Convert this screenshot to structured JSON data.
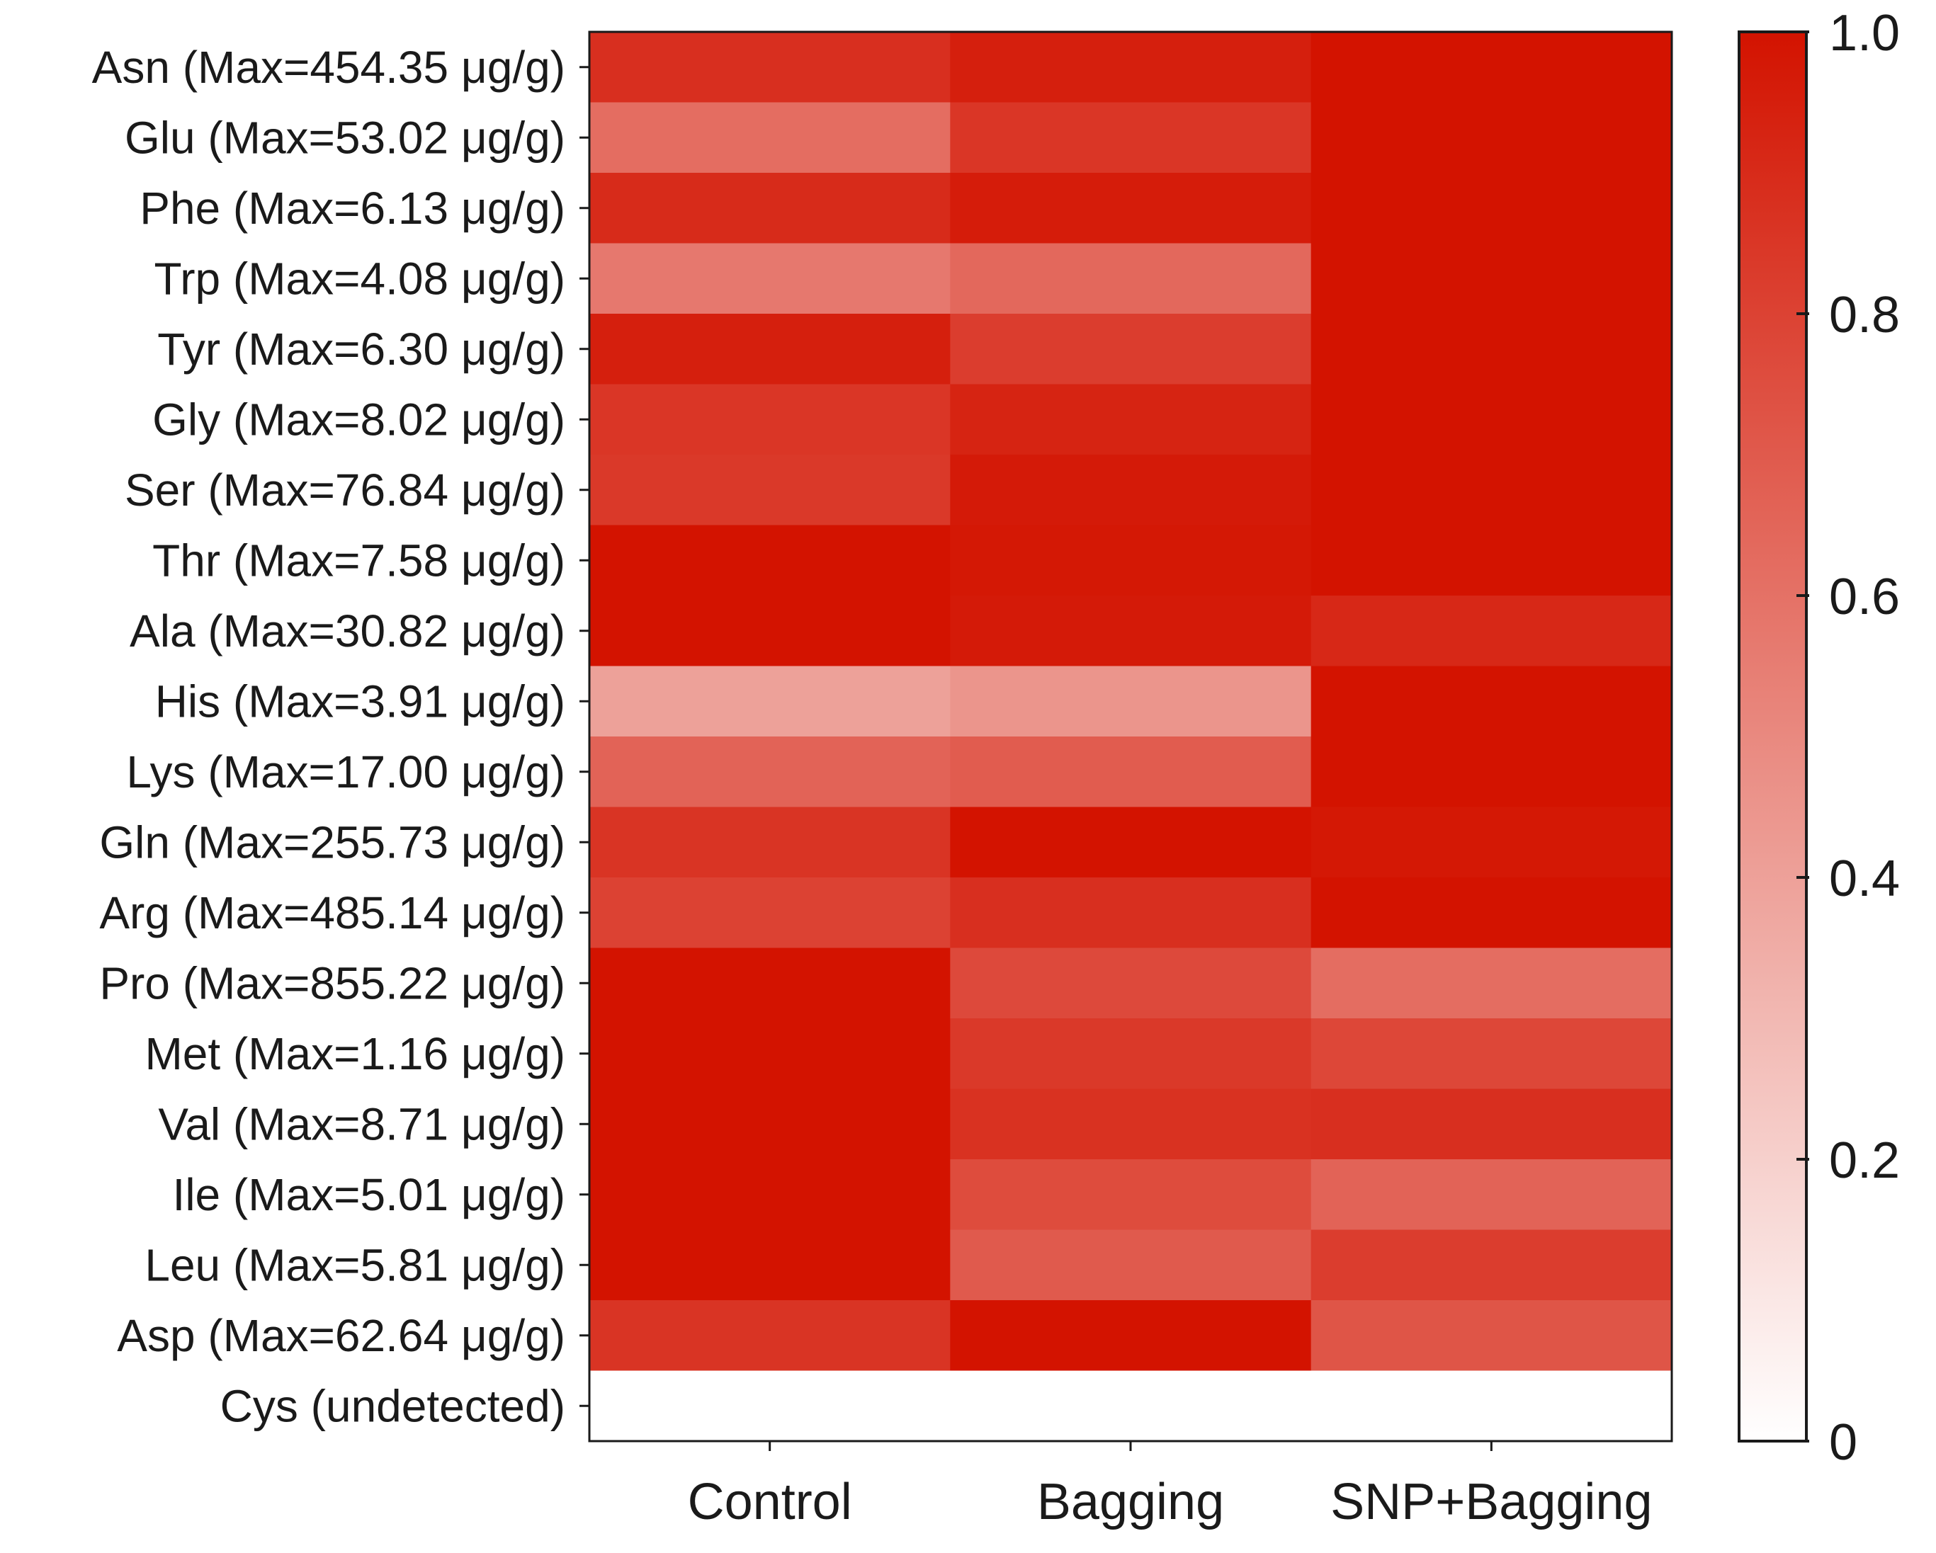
{
  "chart_data": {
    "type": "heatmap",
    "columns": [
      "Control",
      "Bagging",
      "SNP+Bagging"
    ],
    "rows": [
      "Asn (Max=454.35 μg/g)",
      "Glu (Max=53.02 μg/g)",
      "Phe (Max=6.13 μg/g)",
      "Trp (Max=4.08 μg/g)",
      "Tyr (Max=6.30 μg/g)",
      "Gly (Max=8.02 μg/g)",
      "Ser (Max=76.84 μg/g)",
      "Thr (Max=7.58 μg/g)",
      "Ala (Max=30.82 μg/g)",
      "His (Max=3.91 μg/g)",
      "Lys (Max=17.00 μg/g)",
      "Gln (Max=255.73 μg/g)",
      "Arg (Max=485.14 μg/g)",
      "Pro (Max=855.22 μg/g)",
      "Met (Max=1.16 μg/g)",
      "Val (Max=8.71 μg/g)",
      "Ile (Max=5.01 μg/g)",
      "Leu (Max=5.81 μg/g)",
      "Asp (Max=62.64 μg/g)",
      "Cys (undetected)"
    ],
    "values": [
      [
        0.88,
        0.95,
        1.0
      ],
      [
        0.62,
        0.85,
        1.0
      ],
      [
        0.9,
        0.96,
        1.0
      ],
      [
        0.57,
        0.64,
        1.0
      ],
      [
        0.95,
        0.82,
        1.0
      ],
      [
        0.85,
        0.93,
        1.0
      ],
      [
        0.84,
        0.97,
        1.0
      ],
      [
        1.0,
        0.98,
        1.0
      ],
      [
        1.0,
        0.97,
        0.91
      ],
      [
        0.4,
        0.45,
        1.0
      ],
      [
        0.66,
        0.69,
        1.0
      ],
      [
        0.86,
        1.0,
        0.98
      ],
      [
        0.8,
        0.88,
        1.0
      ],
      [
        1.0,
        0.77,
        0.62
      ],
      [
        1.0,
        0.84,
        0.78
      ],
      [
        1.0,
        0.87,
        0.88
      ],
      [
        1.0,
        0.76,
        0.66
      ],
      [
        1.0,
        0.7,
        0.82
      ],
      [
        0.86,
        1.0,
        0.72
      ],
      [
        0.0,
        0.0,
        0.0
      ]
    ],
    "colorbar": {
      "min": 0,
      "max": 1,
      "ticks": [
        "0",
        "0.2",
        "0.4",
        "0.6",
        "0.8",
        "1.0"
      ],
      "color_low": "#ffffff",
      "color_high": "#d31300"
    }
  }
}
